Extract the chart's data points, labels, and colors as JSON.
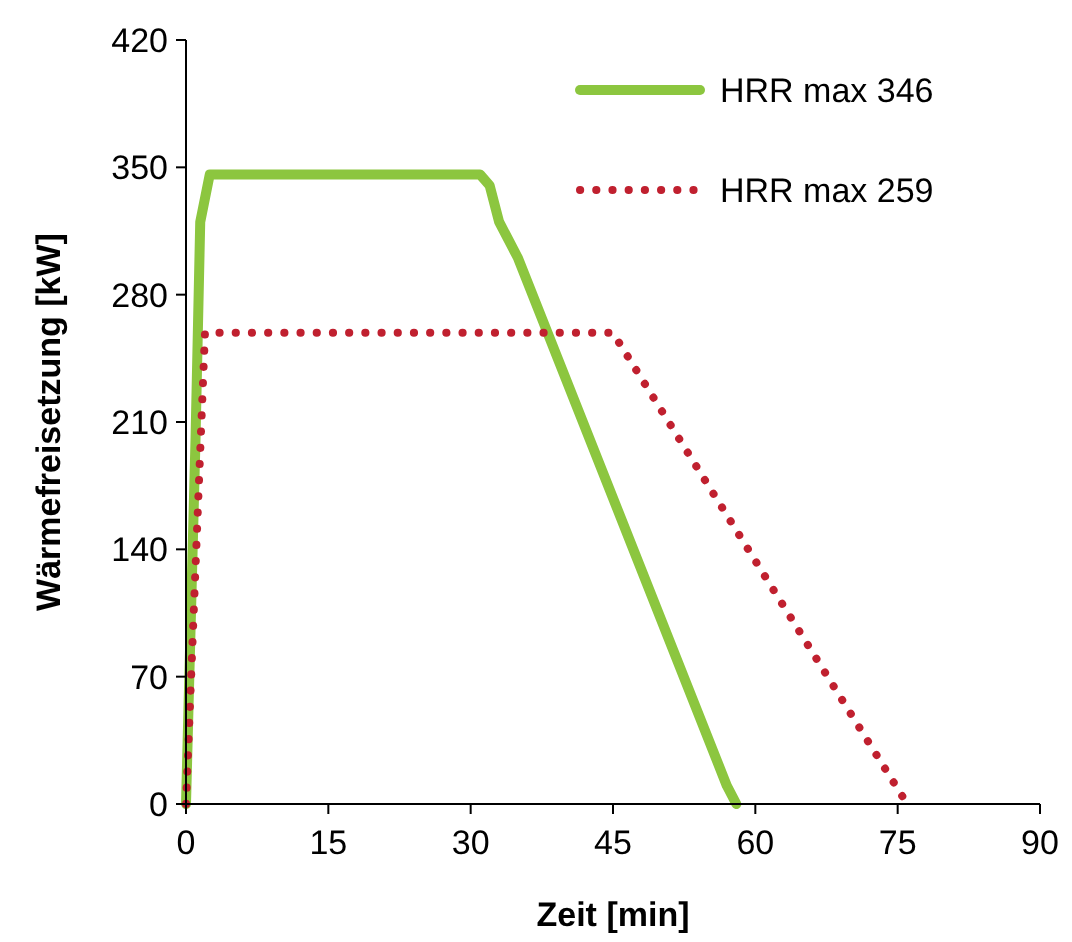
{
  "chart_data": {
    "type": "line",
    "xlabel": "Zeit [min]",
    "ylabel": "Wärmefreisetzung [kW]",
    "xlim": [
      0,
      90
    ],
    "xticks": [
      0,
      15,
      30,
      45,
      60,
      75,
      90
    ],
    "ylim": [
      0,
      420
    ],
    "yticks": [
      0,
      70,
      140,
      210,
      280,
      350,
      420
    ],
    "grid": false,
    "legend": "top right",
    "marker": "none",
    "series": [
      {
        "name": "HRR max 346",
        "color": "#8cc63f",
        "line_style": "solid",
        "x": [
          0,
          1,
          1.5,
          2.5,
          31,
          32,
          33,
          35,
          57,
          58
        ],
        "values": [
          0,
          200,
          320,
          346,
          346,
          340,
          320,
          300,
          10,
          0
        ]
      },
      {
        "name": "HRR max 259",
        "color": "#c0202f",
        "line_style": "dotted",
        "x": [
          0,
          2,
          45,
          76
        ],
        "values": [
          0,
          259,
          259,
          0
        ]
      }
    ]
  }
}
